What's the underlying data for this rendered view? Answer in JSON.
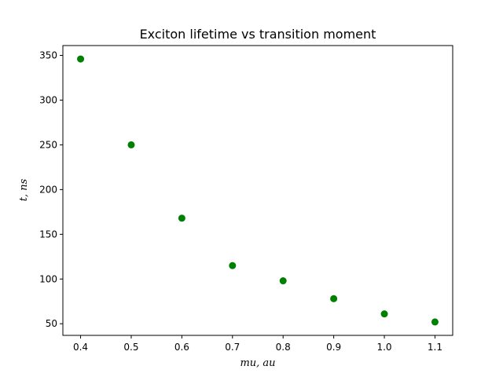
{
  "chart_data": {
    "type": "scatter",
    "title": "Exciton lifetime vs transition moment",
    "xlabel": "mu, au",
    "ylabel": "t, ns",
    "x": [
      0.4,
      0.5,
      0.6,
      0.7,
      0.8,
      0.9,
      1.0,
      1.1
    ],
    "y": [
      346,
      250,
      168,
      115,
      98,
      78,
      61,
      52
    ],
    "xlim": [
      0.365,
      1.135
    ],
    "ylim": [
      37,
      361
    ],
    "xticks": [
      "0.4",
      "0.5",
      "0.6",
      "0.7",
      "0.8",
      "0.9",
      "1.0",
      "1.1"
    ],
    "yticks": [
      "50",
      "100",
      "150",
      "200",
      "250",
      "300",
      "350"
    ],
    "marker_color": "#008000",
    "grid": false,
    "legend": false
  }
}
